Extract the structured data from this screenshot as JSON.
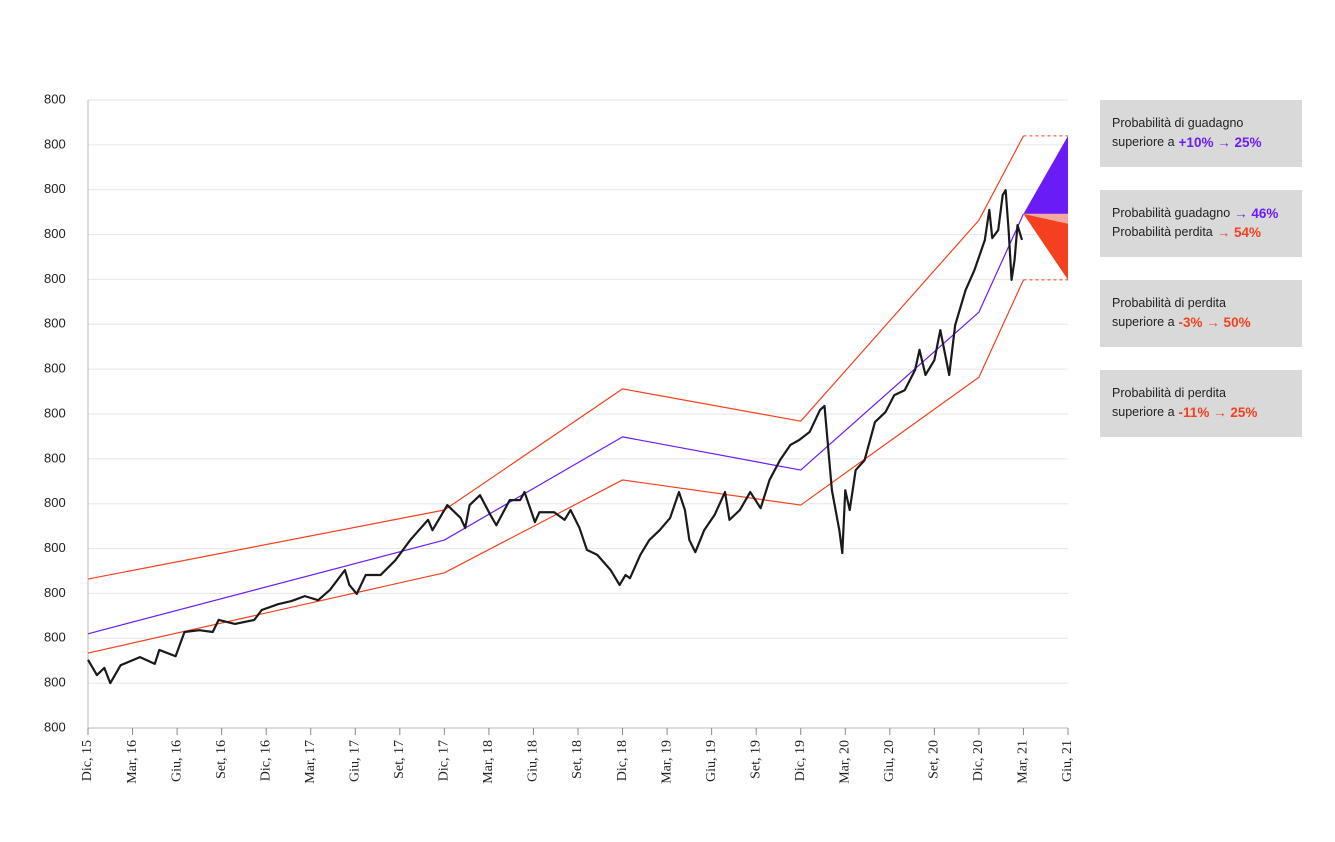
{
  "chart_data": {
    "type": "line",
    "xlim": [
      0,
      66
    ],
    "xticks": [
      {
        "value": 0,
        "label": "Dic, 15"
      },
      {
        "value": 3,
        "label": "Mar, 16"
      },
      {
        "value": 6,
        "label": "Giu, 16"
      },
      {
        "value": 9,
        "label": "Set, 16"
      },
      {
        "value": 12,
        "label": "Dic, 16"
      },
      {
        "value": 15,
        "label": "Mar, 17"
      },
      {
        "value": 18,
        "label": "Giu, 17"
      },
      {
        "value": 21,
        "label": "Set, 17"
      },
      {
        "value": 24,
        "label": "Dic, 17"
      },
      {
        "value": 27,
        "label": "Mar, 18"
      },
      {
        "value": 30,
        "label": "Giu, 18"
      },
      {
        "value": 33,
        "label": "Set, 18"
      },
      {
        "value": 36,
        "label": "Dic, 18"
      },
      {
        "value": 39,
        "label": "Mar, 19"
      },
      {
        "value": 42,
        "label": "Giu, 19"
      },
      {
        "value": 45,
        "label": "Set, 19"
      },
      {
        "value": 48,
        "label": "Dic, 19"
      },
      {
        "value": 51,
        "label": "Mar, 20"
      },
      {
        "value": 54,
        "label": "Giu, 20"
      },
      {
        "value": 57,
        "label": "Set, 20"
      },
      {
        "value": 60,
        "label": "Dic, 20"
      },
      {
        "value": 63,
        "label": "Mar, 21"
      },
      {
        "value": 66,
        "label": "Giu, 21"
      }
    ],
    "ylim": [
      0,
      14
    ],
    "yticks": [
      {
        "value": 0,
        "label": "800"
      },
      {
        "value": 1,
        "label": "800"
      },
      {
        "value": 2,
        "label": "800"
      },
      {
        "value": 3,
        "label": "800"
      },
      {
        "value": 4,
        "label": "800"
      },
      {
        "value": 5,
        "label": "800"
      },
      {
        "value": 6,
        "label": "800"
      },
      {
        "value": 7,
        "label": "800"
      },
      {
        "value": 8,
        "label": "800"
      },
      {
        "value": 9,
        "label": "800"
      },
      {
        "value": 10,
        "label": "800"
      },
      {
        "value": 11,
        "label": "800"
      },
      {
        "value": 12,
        "label": "800"
      },
      {
        "value": 13,
        "label": "800"
      },
      {
        "value": 14,
        "label": "800"
      }
    ],
    "grid": true,
    "series": [
      {
        "color": "#f4401e",
        "width": 1.2,
        "x": [
          0,
          24,
          36,
          48,
          60,
          63
        ],
        "values": [
          3.32,
          4.86,
          7.56,
          6.84,
          11.32,
          13.2
        ]
      },
      {
        "color": "#6a1cf6",
        "width": 1.2,
        "x": [
          0,
          24,
          36,
          48,
          60,
          63
        ],
        "values": [
          2.1,
          4.19,
          6.49,
          5.75,
          9.27,
          11.46
        ]
      },
      {
        "color": "#f4401e",
        "width": 1.2,
        "x": [
          0,
          24,
          36,
          48,
          60,
          63
        ],
        "values": [
          1.67,
          3.46,
          5.53,
          4.97,
          7.82,
          9.99
        ]
      },
      {
        "color": "#1a1a1a",
        "width": 2.2,
        "x": [
          0,
          0.6,
          1.1,
          1.5,
          2.2,
          3.5,
          4.5,
          4.8,
          5.9,
          6.5,
          7.5,
          8.4,
          8.8,
          9.9,
          11.2,
          11.7,
          12.8,
          13.7,
          14.6,
          15.5,
          16.3,
          17.3,
          17.6,
          18.1,
          18.7,
          19.7,
          20.7,
          21.7,
          22.9,
          23.2,
          24.2,
          25.1,
          25.4,
          25.7,
          26.4,
          27.1,
          27.5,
          28.4,
          29.1,
          29.4,
          30.1,
          30.4,
          31.4,
          32.1,
          32.5,
          33.1,
          33.6,
          34.3,
          35.2,
          35.8,
          36.2,
          36.5,
          37.2,
          37.8,
          38.5,
          39.2,
          39.8,
          40.2,
          40.5,
          40.9,
          41.5,
          42.2,
          42.9,
          43.2,
          43.9,
          44.6,
          45.3,
          45.9,
          46.6,
          47.3,
          47.9,
          48.6,
          49.3,
          49.6,
          50.1,
          50.6,
          50.8,
          51.0,
          51.3,
          51.7,
          52.3,
          53.0,
          53.7,
          54.3,
          55.0,
          55.7,
          56.0,
          56.4,
          57.0,
          57.4,
          58.0,
          58.4,
          59.1,
          59.7,
          60.4,
          60.7,
          60.9,
          61.3,
          61.6,
          61.8,
          62.0,
          62.2,
          62.4,
          62.6,
          62.9
        ],
        "values": [
          1.52,
          1.18,
          1.34,
          1.0,
          1.4,
          1.58,
          1.43,
          1.74,
          1.6,
          2.14,
          2.18,
          2.14,
          2.41,
          2.32,
          2.41,
          2.63,
          2.76,
          2.83,
          2.94,
          2.85,
          3.08,
          3.52,
          3.19,
          2.99,
          3.41,
          3.41,
          3.74,
          4.19,
          4.64,
          4.41,
          4.97,
          4.68,
          4.46,
          4.97,
          5.19,
          4.75,
          4.52,
          5.08,
          5.08,
          5.26,
          4.59,
          4.81,
          4.81,
          4.64,
          4.86,
          4.46,
          3.97,
          3.86,
          3.52,
          3.19,
          3.41,
          3.34,
          3.86,
          4.19,
          4.41,
          4.68,
          5.26,
          4.86,
          4.19,
          3.92,
          4.41,
          4.75,
          5.26,
          4.64,
          4.86,
          5.26,
          4.9,
          5.53,
          5.97,
          6.31,
          6.42,
          6.6,
          7.09,
          7.18,
          5.3,
          4.41,
          3.9,
          5.3,
          4.86,
          5.75,
          5.97,
          6.82,
          7.04,
          7.42,
          7.53,
          7.98,
          8.43,
          7.87,
          8.2,
          8.87,
          7.87,
          8.98,
          9.76,
          10.21,
          10.88,
          11.55,
          10.92,
          11.1,
          11.88,
          11.99,
          11.1,
          9.99,
          10.43,
          11.21,
          10.88
        ]
      }
    ],
    "fan": {
      "x": 66,
      "levels": [
        13.2,
        11.46,
        11.24,
        9.99
      ],
      "colors": [
        "#6a1cf6",
        "#f4a8a0",
        "#f4401e"
      ]
    },
    "annotations": [
      {
        "lines": [
          {
            "text": "Probabilità di guadagno"
          },
          {
            "text": "superiore a",
            "highlight": "+10% → 25%",
            "color": "#6a1cf6"
          }
        ]
      },
      {
        "lines": [
          {
            "text": "Probabilità guadagno",
            "highlight": "→ 46%",
            "color": "#6a1cf6"
          },
          {
            "text": "Probabilità perdita",
            "highlight": "→ 54%",
            "color": "#f4401e"
          }
        ]
      },
      {
        "lines": [
          {
            "text": "Probabilità di perdita"
          },
          {
            "text": "superiore a",
            "highlight": "-3% → 50%",
            "color": "#f4401e"
          }
        ]
      },
      {
        "lines": [
          {
            "text": "Probabilità di perdita"
          },
          {
            "text": "superiore a",
            "highlight": "-11% → 25%",
            "color": "#f4401e"
          }
        ]
      }
    ]
  }
}
